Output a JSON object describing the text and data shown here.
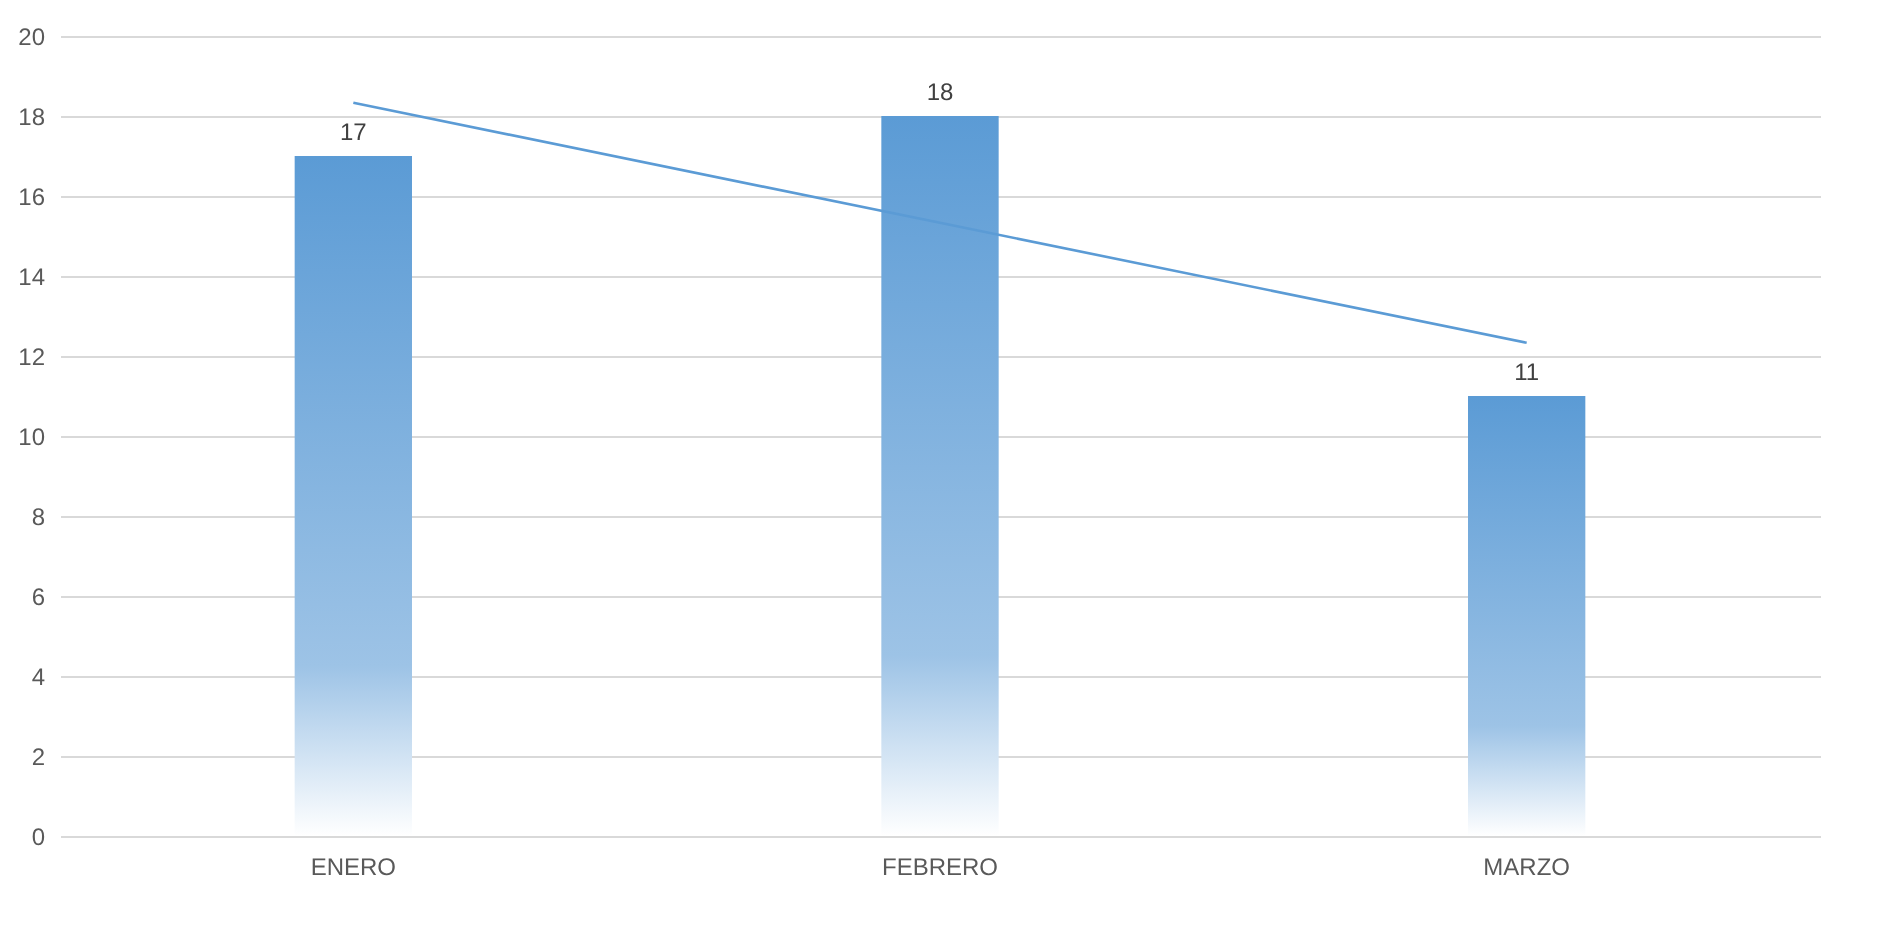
{
  "chart_data": {
    "type": "bar",
    "categories": [
      "ENERO",
      "FEBRERO",
      "MARZO"
    ],
    "series": [
      {
        "color": "#5b9bd5",
        "values": [
          17,
          18,
          11
        ],
        "value_labels": [
          "17",
          "18",
          "11"
        ]
      },
      {
        "type": "line",
        "color": "#5b9bd5",
        "values": [
          18.33,
          15.33,
          12.33
        ],
        "marker": "none"
      }
    ],
    "ylim": [
      0,
      20
    ],
    "yticks": [
      0,
      2,
      4,
      6,
      8,
      10,
      12,
      14,
      16,
      18,
      20
    ],
    "grid": "y"
  }
}
